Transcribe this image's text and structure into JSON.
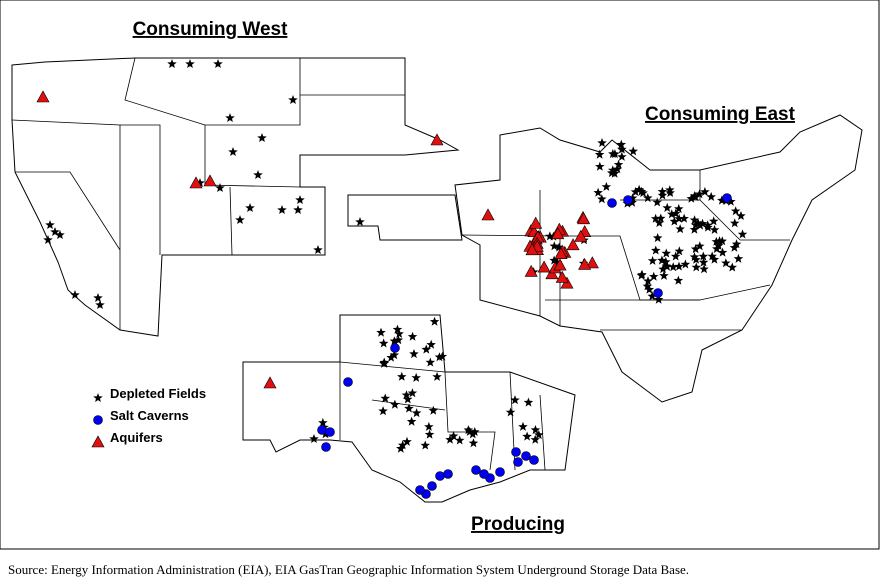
{
  "regions": [
    {
      "label": "Consuming West"
    },
    {
      "label": "Consuming East"
    },
    {
      "label": "Producing"
    }
  ],
  "legend": [
    {
      "label": "Depleted Fields"
    },
    {
      "label": "Salt Caverns"
    },
    {
      "label": "Aquifers"
    }
  ],
  "source": "Source:  Energy Information Administration (EIA), EIA GasTran Geographic Information System Underground Storage Data Base."
}
